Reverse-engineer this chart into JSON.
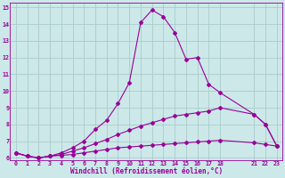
{
  "line1_x": [
    0,
    1,
    2,
    3,
    4,
    5,
    6,
    7,
    8,
    9,
    10,
    11,
    12,
    13,
    14,
    15,
    16,
    17,
    18,
    21,
    22,
    23
  ],
  "line1_y": [
    6.3,
    6.1,
    6.0,
    6.1,
    6.3,
    6.6,
    7.0,
    7.7,
    8.25,
    9.25,
    10.5,
    14.1,
    14.85,
    14.45,
    13.5,
    11.9,
    12.0,
    10.4,
    9.9,
    8.6,
    8.0,
    6.7
  ],
  "line2_x": [
    0,
    1,
    2,
    3,
    4,
    5,
    6,
    7,
    8,
    9,
    10,
    11,
    12,
    13,
    14,
    15,
    16,
    17,
    18,
    21,
    22,
    23
  ],
  "line2_y": [
    6.3,
    6.1,
    6.0,
    6.1,
    6.2,
    6.4,
    6.6,
    6.85,
    7.1,
    7.4,
    7.65,
    7.9,
    8.1,
    8.3,
    8.5,
    8.6,
    8.7,
    8.8,
    9.0,
    8.6,
    8.0,
    6.7
  ],
  "line3_x": [
    0,
    1,
    2,
    3,
    4,
    5,
    6,
    7,
    8,
    9,
    10,
    11,
    12,
    13,
    14,
    15,
    16,
    17,
    18,
    21,
    22,
    23
  ],
  "line3_y": [
    6.3,
    6.1,
    6.0,
    6.1,
    6.15,
    6.2,
    6.3,
    6.4,
    6.5,
    6.6,
    6.65,
    6.7,
    6.75,
    6.8,
    6.85,
    6.9,
    6.95,
    7.0,
    7.05,
    6.9,
    6.8,
    6.7
  ],
  "line_color": "#990099",
  "bg_color": "#cce8e8",
  "grid_color": "#aacccc",
  "xlabel": "Windchill (Refroidissement éolien,°C)",
  "xlim_min": -0.5,
  "xlim_max": 23.5,
  "ylim_min": 5.85,
  "ylim_max": 15.3,
  "xticks": [
    0,
    1,
    2,
    3,
    4,
    5,
    6,
    7,
    8,
    9,
    10,
    11,
    12,
    13,
    14,
    15,
    16,
    17,
    18,
    21,
    22,
    23
  ],
  "yticks": [
    6,
    7,
    8,
    9,
    10,
    11,
    12,
    13,
    14,
    15
  ],
  "marker": "D",
  "markersize": 2.0,
  "linewidth": 0.8
}
